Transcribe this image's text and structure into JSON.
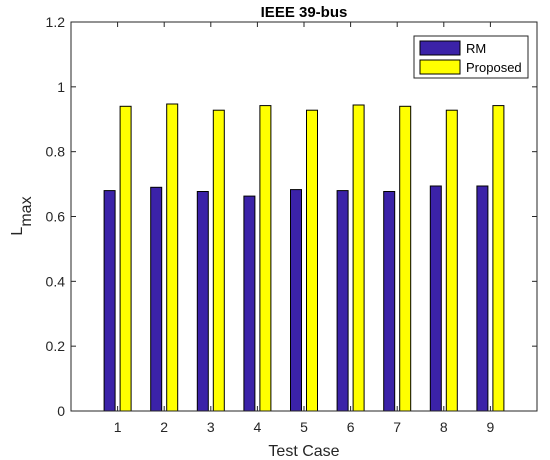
{
  "chart_data": {
    "type": "bar",
    "title": "IEEE 39-bus",
    "xlabel": "Test Case",
    "ylabel": "L",
    "ylabel_subscript": "max",
    "categories": [
      "1",
      "2",
      "3",
      "4",
      "5",
      "6",
      "7",
      "8",
      "9"
    ],
    "series": [
      {
        "name": "RM",
        "color": "#3b22a8",
        "values": [
          0.68,
          0.69,
          0.677,
          0.663,
          0.683,
          0.68,
          0.677,
          0.694,
          0.694
        ]
      },
      {
        "name": "Proposed",
        "color": "#ffff00",
        "values": [
          0.94,
          0.947,
          0.928,
          0.942,
          0.928,
          0.944,
          0.94,
          0.928,
          0.942
        ]
      }
    ],
    "ylim": [
      0,
      1.2
    ],
    "yticks": [
      "0",
      "0.2",
      "0.4",
      "0.6",
      "0.8",
      "1",
      "1.2"
    ],
    "grid": false,
    "legend_position": "top-right"
  }
}
